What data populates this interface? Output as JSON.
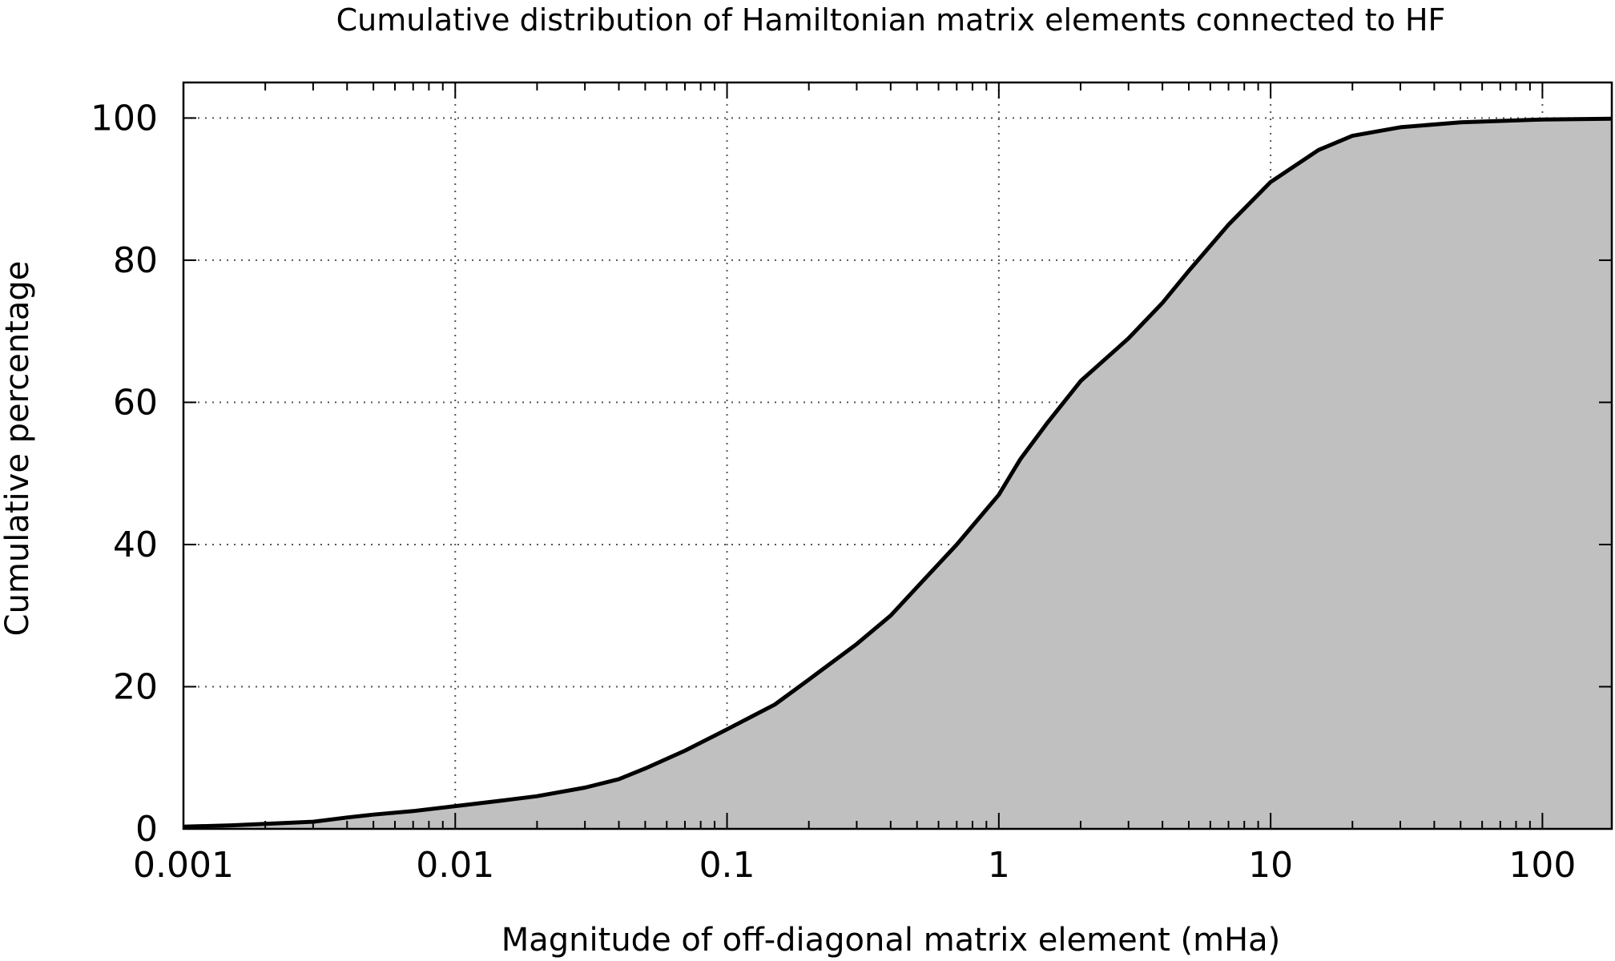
{
  "chart_data": {
    "type": "area",
    "title": "Cumulative distribution of Hamiltonian matrix elements connected to HF",
    "xlabel": "Magnitude of off-diagonal matrix element (mHa)",
    "ylabel": "Cumulative percentage",
    "xscale": "log",
    "xlim": [
      0.001,
      180
    ],
    "ylim": [
      0,
      105
    ],
    "xticks": [
      {
        "value": 0.001,
        "label": "0.001"
      },
      {
        "value": 0.01,
        "label": "0.01"
      },
      {
        "value": 0.1,
        "label": "0.1"
      },
      {
        "value": 1,
        "label": "1"
      },
      {
        "value": 10,
        "label": "10"
      },
      {
        "value": 100,
        "label": "100"
      }
    ],
    "yticks": [
      {
        "value": 0,
        "label": "0"
      },
      {
        "value": 20,
        "label": "20"
      },
      {
        "value": 40,
        "label": "40"
      },
      {
        "value": 60,
        "label": "60"
      },
      {
        "value": 80,
        "label": "80"
      },
      {
        "value": 100,
        "label": "100"
      }
    ],
    "grid": true,
    "fill_color": "#c0c0c0",
    "line_color": "#000000",
    "series": [
      {
        "name": "cumulative",
        "x": [
          0.001,
          0.0015,
          0.002,
          0.003,
          0.004,
          0.005,
          0.007,
          0.01,
          0.015,
          0.02,
          0.03,
          0.04,
          0.05,
          0.07,
          0.1,
          0.15,
          0.2,
          0.3,
          0.4,
          0.5,
          0.7,
          1,
          1.2,
          1.5,
          2,
          3,
          4,
          5,
          7,
          10,
          15,
          20,
          30,
          50,
          100,
          180
        ],
        "y": [
          0.3,
          0.5,
          0.7,
          1.0,
          1.6,
          2.0,
          2.5,
          3.2,
          4.0,
          4.6,
          5.8,
          7.0,
          8.5,
          11.0,
          14.0,
          17.5,
          21.0,
          26.0,
          30.0,
          34.0,
          40.0,
          47.0,
          52.0,
          57.0,
          63.0,
          69.0,
          74.0,
          78.5,
          85.0,
          91.0,
          95.5,
          97.5,
          98.7,
          99.4,
          99.8,
          99.9
        ]
      }
    ]
  }
}
